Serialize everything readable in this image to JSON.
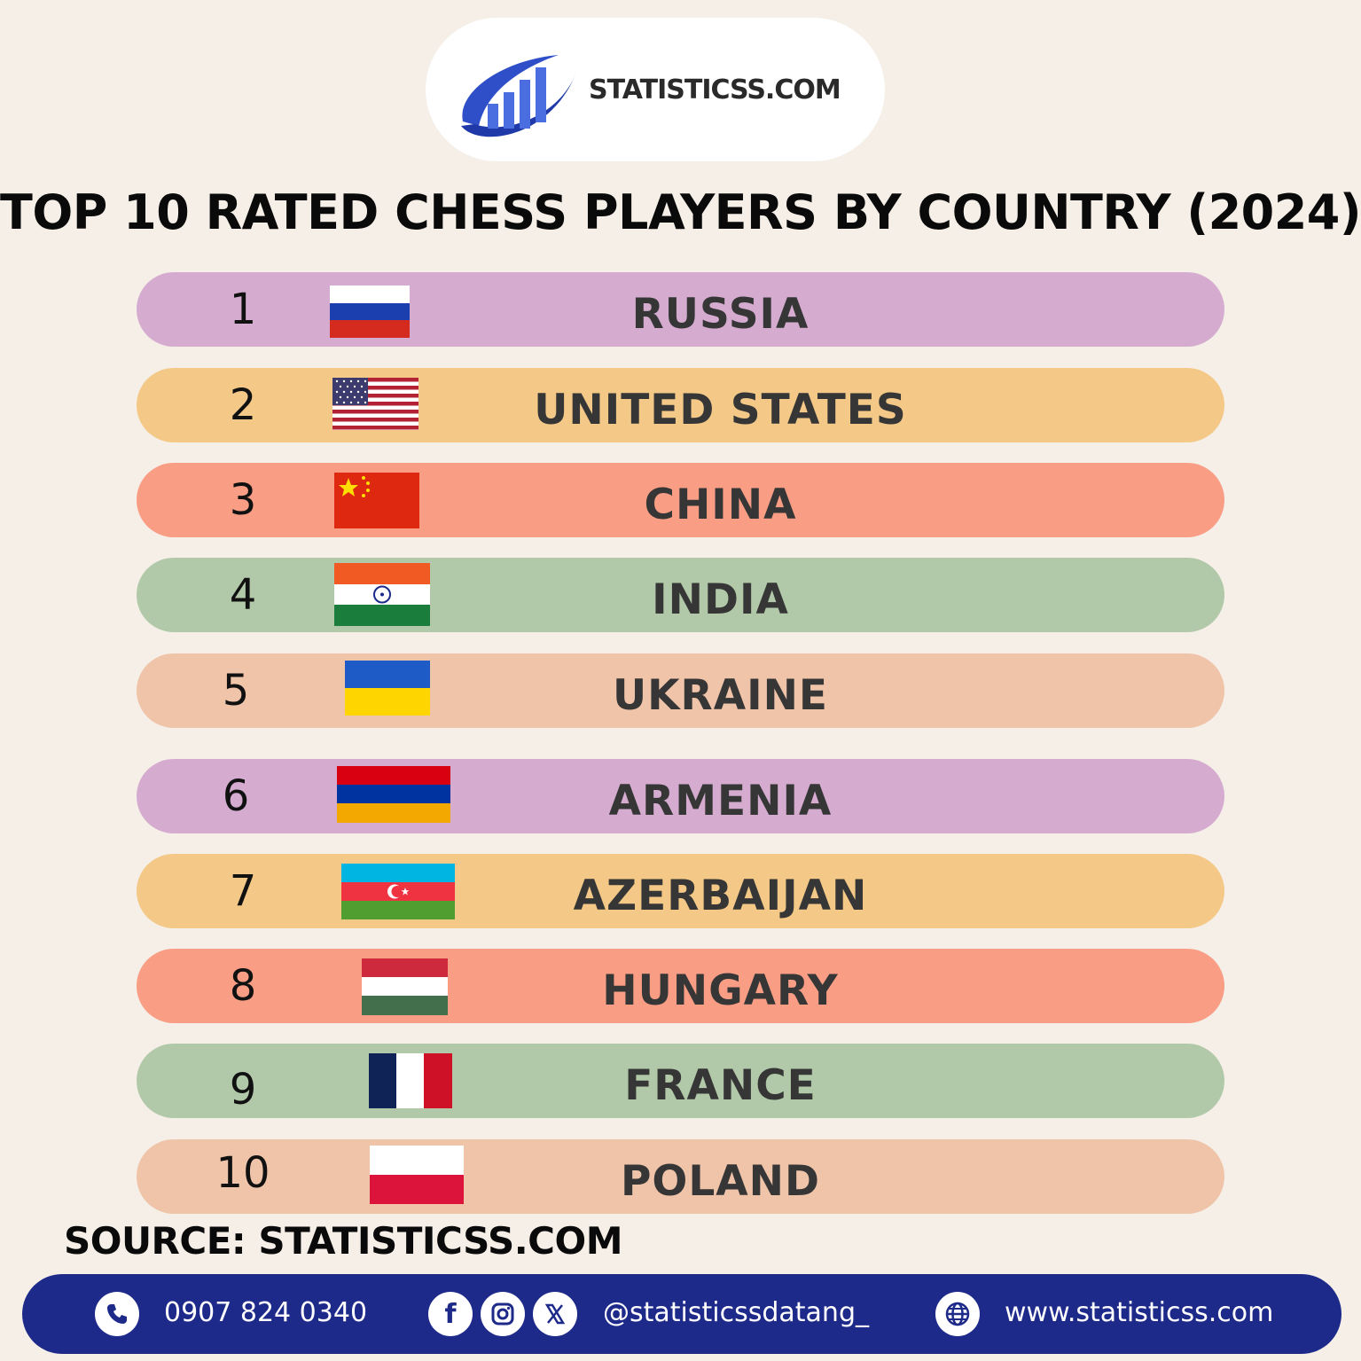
{
  "brand": {
    "logo_text": "STATISTICSS.COM",
    "primary_color": "#1e2a8a",
    "logo_blue": "#2f4fc8"
  },
  "title": "TOP 10 RATED CHESS PLAYERS BY COUNTRY (2024)",
  "rows": [
    {
      "rank": "1",
      "country": "RUSSIA",
      "color": "#d5acd0",
      "flag": "russia-flag-icon"
    },
    {
      "rank": "2",
      "country": "UNITED STATES",
      "color": "#f4c987",
      "flag": "usa-flag-icon"
    },
    {
      "rank": "3",
      "country": "CHINA",
      "color": "#f99e85",
      "flag": "china-flag-icon"
    },
    {
      "rank": "4",
      "country": "INDIA",
      "color": "#b2c9a9",
      "flag": "india-flag-icon"
    },
    {
      "rank": "5",
      "country": "UKRAINE",
      "color": "#efc4a9",
      "flag": "ukraine-flag-icon"
    },
    {
      "rank": "6",
      "country": "ARMENIA",
      "color": "#d5acd0",
      "flag": "armenia-flag-icon"
    },
    {
      "rank": "7",
      "country": "AZERBAIJAN",
      "color": "#f4c987",
      "flag": "azerbaijan-flag-icon"
    },
    {
      "rank": "8",
      "country": "HUNGARY",
      "color": "#f99e85",
      "flag": "hungary-flag-icon"
    },
    {
      "rank": "9",
      "country": "FRANCE",
      "color": "#b2c9a9",
      "flag": "france-flag-icon"
    },
    {
      "rank": "10",
      "country": "POLAND",
      "color": "#efc4a9",
      "flag": "poland-flag-icon"
    }
  ],
  "source": "SOURCE: STATISTICSS.COM",
  "footer": {
    "phone": "0907 824 0340",
    "social_handle": "@statisticssdatang_",
    "website": "www.statisticss.com",
    "icons": [
      "phone-icon",
      "facebook-icon",
      "instagram-icon",
      "x-icon",
      "globe-icon"
    ]
  }
}
